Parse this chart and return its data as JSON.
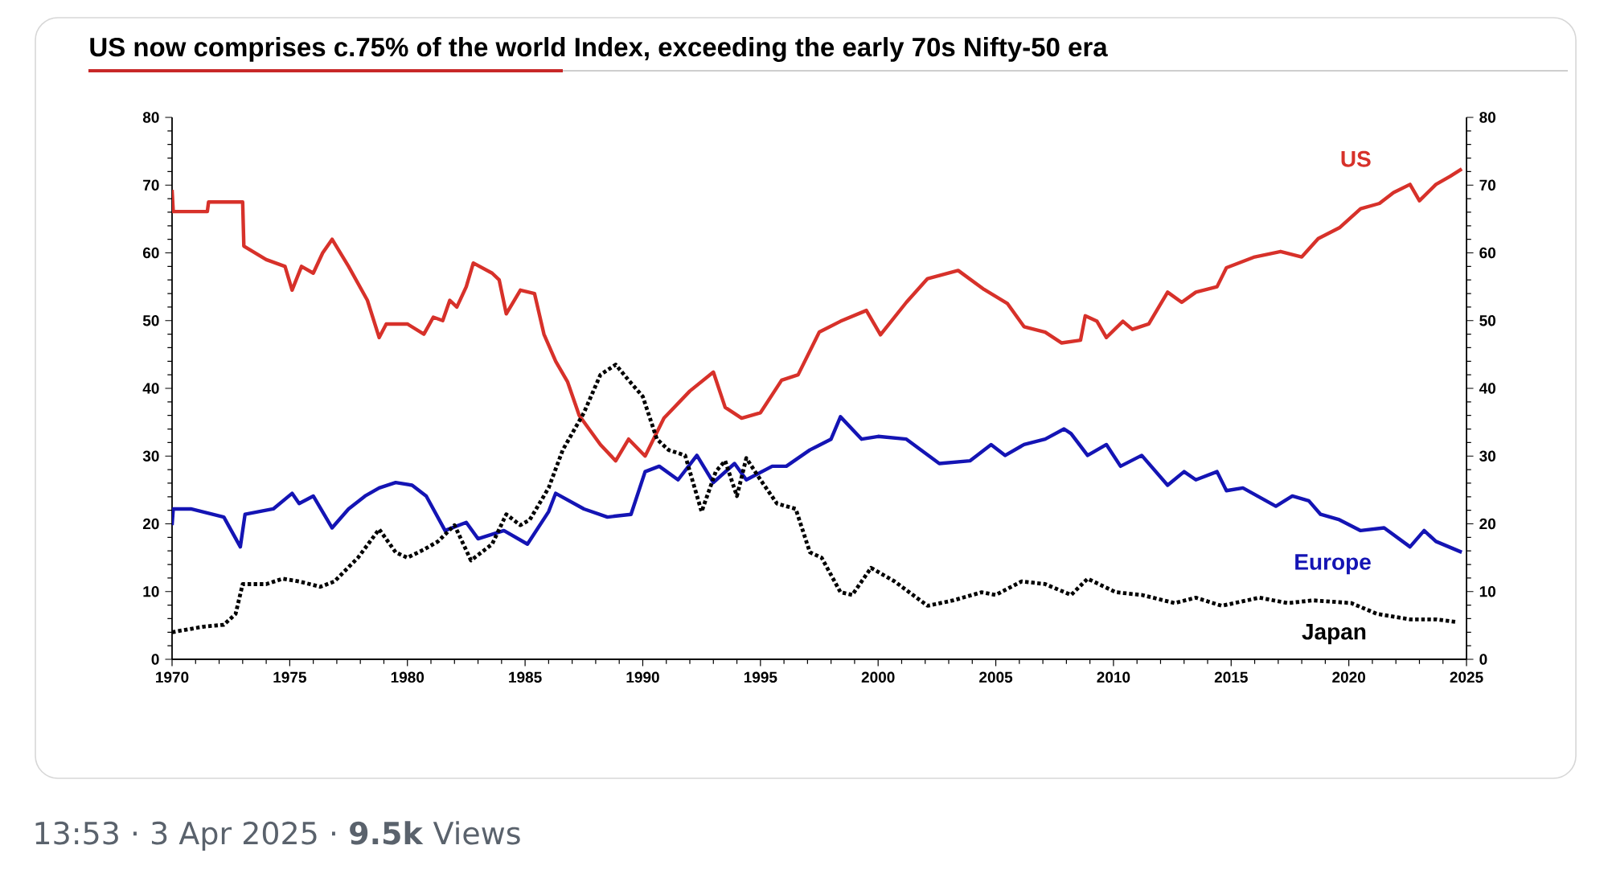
{
  "chart_data": {
    "type": "line",
    "title": "US now comprises c.75% of the world Index, exceeding the early 70s Nifty-50 era",
    "annotations": [
      "13:53 · 3 Apr 2025 · **9.5k** Views"
    ],
    "xlim": [
      1970,
      2025
    ],
    "xticks": [
      1970,
      1975,
      1980,
      1985,
      1990,
      1995,
      2000,
      2005,
      2010,
      2015,
      2020,
      2025
    ],
    "ylim": [
      0,
      80
    ],
    "yticks": [
      0,
      10,
      20,
      30,
      40,
      50,
      60,
      70,
      80
    ],
    "y2lim": [
      0,
      80
    ],
    "y2ticks": [
      0,
      10,
      20,
      30,
      40,
      50,
      60,
      70,
      80
    ],
    "grid": false,
    "series": [
      {
        "name": "US",
        "color": "#d7312a",
        "line_style": "solid",
        "x": [
          1970,
          1970.05,
          1971.5,
          1971.55,
          1973.0,
          1973.05,
          1974.0,
          1974.8,
          1975.1,
          1975.5,
          1976.0,
          1976.4,
          1976.8,
          1977.5,
          1978.3,
          1978.8,
          1979.1,
          1980.0,
          1980.7,
          1981.1,
          1981.5,
          1981.8,
          1982.1,
          1982.5,
          1982.8,
          1983.6,
          1983.9,
          1984.2,
          1984.8,
          1985.4,
          1985.8,
          1986.3,
          1986.8,
          1987.3,
          1988.2,
          1988.85,
          1989.4,
          1990.1,
          1990.9,
          1992.0,
          1993.0,
          1993.5,
          1994.2,
          1995.0,
          1995.9,
          1996.6,
          1997.5,
          1998.4,
          1999.5,
          2000.1,
          2001.2,
          2002.1,
          2003.4,
          2004.5,
          2005.5,
          2006.2,
          2007.1,
          2007.8,
          2008.6,
          2008.8,
          2009.3,
          2009.7,
          2010.4,
          2010.8,
          2011.5,
          2012.3,
          2012.9,
          2013.5,
          2014.4,
          2014.8,
          2016.0,
          2017.1,
          2018.0,
          2018.7,
          2019.6,
          2020.5,
          2021.3,
          2021.9,
          2022.6,
          2023.0,
          2023.7,
          2024.3,
          2024.8
        ],
        "values": [
          69.3,
          66.1,
          66.1,
          67.5,
          67.5,
          61,
          59,
          58,
          54.5,
          58,
          57,
          60,
          62,
          58,
          53,
          47.5,
          49.5,
          49.5,
          48,
          50.5,
          50,
          53,
          52,
          55,
          58.5,
          57,
          56,
          51,
          54.5,
          54,
          48,
          44,
          41,
          36,
          31.7,
          29.3,
          32.5,
          30,
          35.6,
          39.6,
          42.4,
          37.2,
          35.6,
          36.4,
          41.2,
          42,
          48.3,
          49.9,
          51.5,
          47.9,
          52.7,
          56.2,
          57.4,
          54.6,
          52.5,
          49.1,
          48.3,
          46.7,
          47.1,
          50.7,
          49.9,
          47.5,
          49.9,
          48.7,
          49.5,
          54.2,
          52.7,
          54.2,
          55,
          57.8,
          59.4,
          60.2,
          59.4,
          62.1,
          63.7,
          66.5,
          67.3,
          68.9,
          70.1,
          67.7,
          70.1,
          71.3,
          72.4
        ]
      },
      {
        "name": "Europe",
        "color": "#1414b4",
        "line_style": "solid",
        "x": [
          1970,
          1970.05,
          1970.8,
          1972.2,
          1972.9,
          1973.1,
          1974.3,
          1975.1,
          1975.4,
          1976.0,
          1976.8,
          1977.5,
          1978.2,
          1978.8,
          1979.5,
          1980.2,
          1980.8,
          1981.6,
          1982.5,
          1983.0,
          1984.1,
          1985.1,
          1986.0,
          1986.3,
          1987.5,
          1988.5,
          1989.5,
          1990.1,
          1990.7,
          1991.5,
          1992.3,
          1993.0,
          1993.9,
          1994.4,
          1995.5,
          1996.1,
          1997.1,
          1998.0,
          1998.4,
          1999.3,
          2000.0,
          2001.2,
          2002.6,
          2003.9,
          2004.8,
          2005.4,
          2006.2,
          2007.1,
          2007.9,
          2008.2,
          2008.9,
          2009.7,
          2010.3,
          2011.2,
          2012.3,
          2013.0,
          2013.5,
          2014.4,
          2014.8,
          2015.5,
          2016.9,
          2017.6,
          2018.3,
          2018.8,
          2019.6,
          2020.5,
          2021.5,
          2022.6,
          2023.2,
          2023.7,
          2024.8
        ],
        "values": [
          19.8,
          22.2,
          22.2,
          21,
          16.6,
          21.4,
          22.2,
          24.5,
          23,
          24.1,
          19.4,
          22.2,
          24.1,
          25.3,
          26.1,
          25.7,
          24.1,
          19,
          20.2,
          17.8,
          19,
          17,
          21.8,
          24.5,
          22.2,
          21,
          21.4,
          27.7,
          28.5,
          26.5,
          30.1,
          26.1,
          28.9,
          26.5,
          28.5,
          28.5,
          30.9,
          32.5,
          35.8,
          32.5,
          32.9,
          32.5,
          28.9,
          29.3,
          31.7,
          30.1,
          31.7,
          32.5,
          34,
          33.3,
          30.1,
          31.7,
          28.5,
          30.1,
          25.7,
          27.7,
          26.5,
          27.7,
          24.9,
          25.3,
          22.6,
          24.1,
          23.4,
          21.4,
          20.6,
          19,
          19.4,
          16.6,
          19,
          17.4,
          15.8
        ]
      },
      {
        "name": "Japan",
        "color": "#000000",
        "line_style": "dotted",
        "x": [
          1970,
          1971.3,
          1972.2,
          1972.7,
          1973.0,
          1974.0,
          1974.7,
          1975.4,
          1976.3,
          1976.9,
          1977.9,
          1978.8,
          1979.5,
          1980.0,
          1980.7,
          1981.3,
          1982.0,
          1982.7,
          1983.6,
          1984.2,
          1984.8,
          1985.2,
          1986.0,
          1986.6,
          1987.5,
          1988.2,
          1988.85,
          1989.4,
          1990.0,
          1990.6,
          1991.1,
          1991.8,
          1992.5,
          1993.1,
          1993.5,
          1994.0,
          1994.4,
          1995.0,
          1995.7,
          1996.5,
          1997.1,
          1997.6,
          1998.4,
          1998.9,
          1999.7,
          2000.7,
          2002.1,
          2003.2,
          2004.4,
          2005.0,
          2006.1,
          2007.1,
          2008.2,
          2008.9,
          2010.1,
          2011.2,
          2012.6,
          2013.5,
          2014.6,
          2016.2,
          2017.4,
          2018.5,
          2020.1,
          2021.2,
          2022.6,
          2023.7,
          2024.6
        ],
        "values": [
          4,
          4.8,
          5.1,
          6.7,
          11.1,
          11.1,
          11.9,
          11.5,
          10.7,
          11.5,
          15,
          19.2,
          15.8,
          15,
          16.2,
          17.4,
          19.8,
          14.6,
          17,
          21.4,
          19.8,
          20.6,
          25.3,
          30.9,
          36.4,
          42,
          43.5,
          41.2,
          38.8,
          32.5,
          30.9,
          30.1,
          21.8,
          27.7,
          29.3,
          24.1,
          29.7,
          26.5,
          23,
          22.2,
          15.8,
          15,
          9.9,
          9.5,
          13.5,
          11.5,
          7.9,
          8.7,
          9.9,
          9.5,
          11.5,
          11.1,
          9.5,
          11.9,
          9.9,
          9.5,
          8.3,
          9.1,
          7.9,
          9.1,
          8.3,
          8.7,
          8.3,
          6.7,
          5.9,
          5.9,
          5.5
        ]
      }
    ]
  }
}
